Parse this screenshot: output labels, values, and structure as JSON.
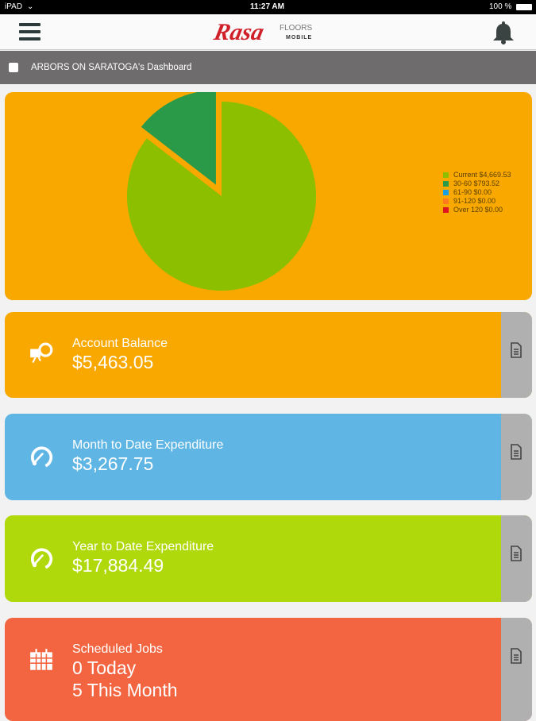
{
  "status_bar": {
    "device": "iPAD",
    "time": "11:27 AM",
    "battery": "100 %"
  },
  "header": {
    "logo_text": "Rasa",
    "logo_floors": "FLOORS",
    "logo_mobile": "MOBILE"
  },
  "subheader": {
    "title": "ARBORS ON SARATOGA's Dashboard"
  },
  "chart_data": {
    "type": "pie",
    "title": "",
    "slices": [
      {
        "name": "Current",
        "label": "Current $4,669.53",
        "value": 4669.53,
        "color": "#8cbf00"
      },
      {
        "name": "30-60",
        "label": "30-60 $793.52",
        "value": 793.52,
        "color": "#2a9a48"
      },
      {
        "name": "61-90",
        "label": "61-90 $0.00",
        "value": 0,
        "color": "#1aa0e0"
      },
      {
        "name": "91-120",
        "label": "91-120 $0.00",
        "value": 0,
        "color": "#ff7a1a"
      },
      {
        "name": "Over 120",
        "label": "Over 120 $0.00",
        "value": 0,
        "color": "#e0141e"
      }
    ],
    "legend_position": "right"
  },
  "cards": [
    {
      "label": "Account Balance",
      "value": "$5,463.05",
      "color": "#f9a800",
      "icon": "money-icon"
    },
    {
      "label": "Month to Date Expenditure",
      "value": "$3,267.75",
      "color": "#5fb5e3",
      "icon": "gauge-icon"
    },
    {
      "label": "Year to Date Expenditure",
      "value": "$17,884.49",
      "color": "#b0d90c",
      "icon": "gauge-icon"
    },
    {
      "label": "Scheduled Jobs",
      "value": "0 Today",
      "value2": "5 This Month",
      "color": "#f26540",
      "icon": "calendar-icon"
    }
  ]
}
